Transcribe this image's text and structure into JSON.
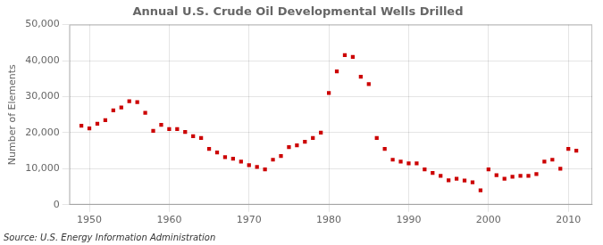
{
  "chart_data": {
    "type": "scatter",
    "title": "Annual U.S. Crude Oil Developmental Wells Drilled",
    "ylabel": "Number of Elements",
    "annotations": [
      "Source: U.S. Energy Information Administration"
    ],
    "color": "#cc0000",
    "marker": "square",
    "x": [
      1949,
      1950,
      1951,
      1952,
      1953,
      1954,
      1955,
      1956,
      1957,
      1958,
      1959,
      1960,
      1961,
      1962,
      1963,
      1964,
      1965,
      1966,
      1967,
      1968,
      1969,
      1970,
      1971,
      1972,
      1973,
      1974,
      1975,
      1976,
      1977,
      1978,
      1979,
      1980,
      1981,
      1982,
      1983,
      1984,
      1985,
      1986,
      1987,
      1988,
      1989,
      1990,
      1991,
      1992,
      1993,
      1994,
      1995,
      1996,
      1997,
      1998,
      1999,
      2000,
      2001,
      2002,
      2003,
      2004,
      2005,
      2006,
      2007,
      2008,
      2009,
      2010,
      2011
    ],
    "values": [
      21900,
      21200,
      22500,
      23500,
      26200,
      27000,
      28700,
      28500,
      25500,
      20500,
      22200,
      21000,
      21000,
      20200,
      19000,
      18500,
      15500,
      14500,
      13200,
      12800,
      12000,
      11000,
      10500,
      9800,
      12500,
      13500,
      16000,
      16500,
      17500,
      18500,
      20000,
      31000,
      37000,
      41500,
      41000,
      35500,
      33500,
      18500,
      15500,
      12500,
      12000,
      11500,
      11500,
      9800,
      8800,
      8000,
      6800,
      7200,
      6700,
      6200,
      4000,
      9800,
      8200,
      7200,
      7800,
      8000,
      8000,
      8500,
      12000,
      12500,
      10000,
      15500,
      15000
    ],
    "xlim": [
      1947.5,
      2013
    ],
    "xticks": [
      1950,
      1960,
      1970,
      1980,
      1990,
      2000,
      2010
    ],
    "ylim": [
      0,
      50000
    ],
    "yticks": [
      0,
      {
        "value": 10000,
        "label": "10,000"
      },
      {
        "value": 20000,
        "label": "20,000"
      },
      {
        "value": 30000,
        "label": "30,000"
      },
      {
        "value": 40000,
        "label": "40,000"
      },
      {
        "value": 50000,
        "label": "50,000"
      }
    ],
    "grid": true
  }
}
